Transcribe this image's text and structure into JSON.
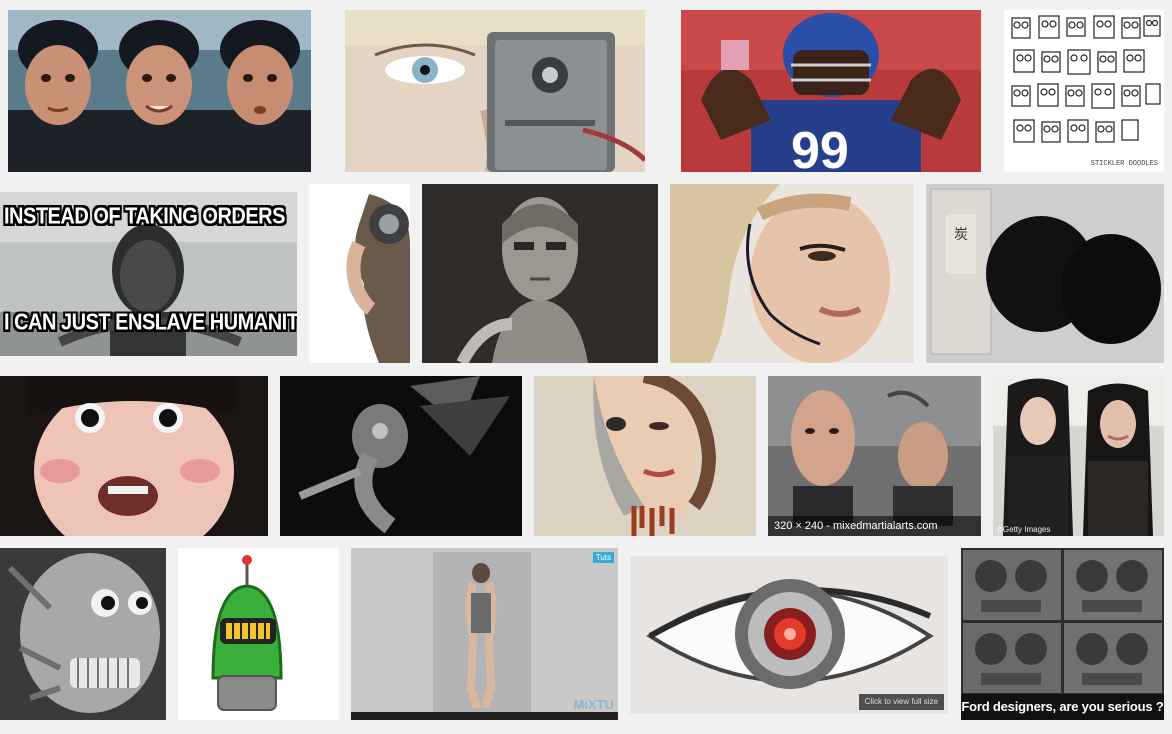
{
  "tiles": [
    {
      "name": "tile-robot-baby",
      "desc": "three-robot-baby-faces"
    },
    {
      "name": "tile-half-robot-woman-eye",
      "desc": "woman-with-robot-half-face"
    },
    {
      "name": "tile-football-player",
      "desc": "giants-player-flexing"
    },
    {
      "name": "tile-doodle-robots",
      "desc": "robot-doodles"
    },
    {
      "name": "tile-meme-robot",
      "desc": "meme-android"
    },
    {
      "name": "tile-robot-profile",
      "desc": "robot-woman-profile"
    },
    {
      "name": "tile-silver-mask-robot",
      "desc": "silver-mask-robot"
    },
    {
      "name": "tile-cyborg-woman-line",
      "desc": "woman-with-cyborg-line"
    },
    {
      "name": "tile-black-oval-package",
      "desc": "black-oval-package"
    },
    {
      "name": "tile-android-girl-surprised",
      "desc": "surprised-android-girl"
    },
    {
      "name": "tile-mech-fairy",
      "desc": "mechanical-fairy"
    },
    {
      "name": "tile-skull-woman",
      "desc": "half-skull-woman"
    },
    {
      "name": "tile-robot-heads",
      "desc": "robot-heads-on-stands"
    },
    {
      "name": "tile-twin-androids",
      "desc": "android-and-woman"
    },
    {
      "name": "tile-exposed-robot-skull",
      "desc": "exposed-robot-skull"
    },
    {
      "name": "tile-green-cartoon-robot",
      "desc": "green-cartoon-robot"
    },
    {
      "name": "tile-chrome-figure",
      "desc": "chrome-figure"
    },
    {
      "name": "tile-robot-eye",
      "desc": "robotic-eye"
    },
    {
      "name": "tile-ford-dashboard",
      "desc": "ford-dashboard-faces"
    }
  ],
  "meme": {
    "top_text": "INSTEAD OF TAKING ORDERS",
    "bottom_text": "I CAN JUST ENSLAVE HUMANITY"
  },
  "hover_info": {
    "text": "320 × 240 - mixedmartialarts.com"
  },
  "twin_androids": {
    "note": "©Getty Images"
  },
  "chrome_figure": {
    "badge": "Tuts",
    "logo": "MiXTU"
  },
  "robot_eye": {
    "view_full": "Click to view full size"
  },
  "ford": {
    "caption": "Ford designers, are you serious ?"
  },
  "doodle": {
    "signature": "STICKLER DOODLES"
  }
}
